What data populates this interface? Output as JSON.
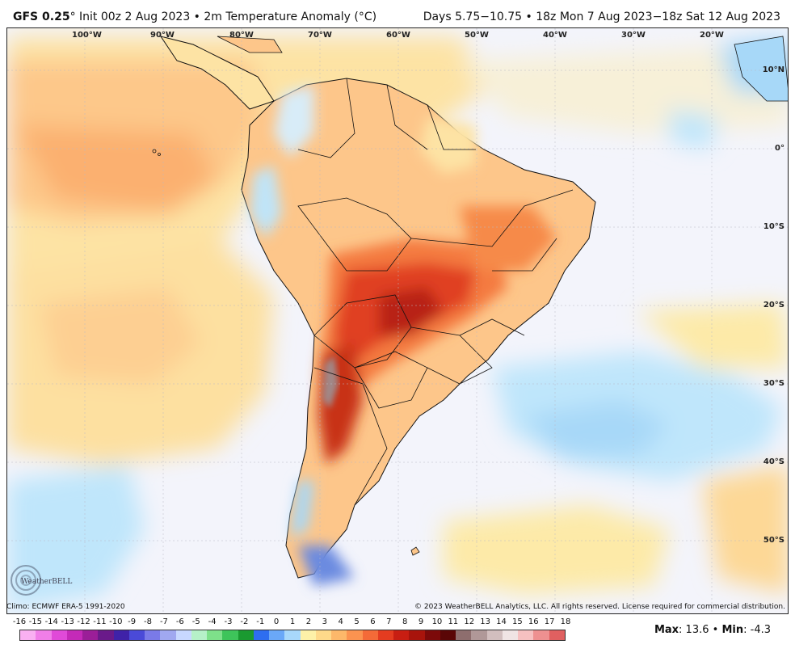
{
  "header": {
    "model": "GFS 0.25",
    "degree": "°",
    "title_rest": " Init 00z 2 Aug 2023 • 2m Temperature Anomaly (°C)",
    "right": "Days 5.75−10.75 • 18z Mon 7 Aug 2023−18z Sat 12 Aug 2023"
  },
  "map": {
    "lon_labels": [
      "100°W",
      "90°W",
      "80°W",
      "70°W",
      "60°W",
      "50°W",
      "40°W",
      "30°W",
      "20°W"
    ],
    "lat_labels": [
      "10°N",
      "0°",
      "10°S",
      "20°S",
      "30°S",
      "40°S",
      "50°S"
    ]
  },
  "footer": {
    "climo": "Climo: ECMWF ERA-5 1991-2020",
    "copyright": "© 2023 WeatherBELL Analytics, LLC. All rights reserved. License required for commercial distribution.",
    "logo_text": "WeatherBELL"
  },
  "legend": {
    "ticks": [
      "-16",
      "-15",
      "-14",
      "-13",
      "-12",
      "-11",
      "-10",
      "-9",
      "-8",
      "-7",
      "-6",
      "-5",
      "-4",
      "-3",
      "-2",
      "-1",
      "0",
      "1",
      "2",
      "3",
      "4",
      "5",
      "6",
      "7",
      "8",
      "9",
      "10",
      "11",
      "12",
      "13",
      "14",
      "15",
      "16",
      "17",
      "18"
    ],
    "colors": [
      "#f9b0f2",
      "#f07ee8",
      "#e04ad8",
      "#c42ab8",
      "#9b1e98",
      "#6a1a8a",
      "#3f22a8",
      "#4a4ad8",
      "#7a7ae8",
      "#a0a8f0",
      "#c8d8ff",
      "#b6f0c8",
      "#7ee08a",
      "#3ec45a",
      "#1a9a30",
      "#2e6ef0",
      "#6aa8f8",
      "#a8d8fb",
      "#fdf1a8",
      "#fed98a",
      "#fdb86a",
      "#fb9350",
      "#f46a38",
      "#e43c20",
      "#c81e12",
      "#a8140c",
      "#7c0a0a",
      "#5a0606",
      "#8e6e6e",
      "#b09898",
      "#d2bebe",
      "#f0e4e4",
      "#f6c0c0",
      "#ee9090",
      "#e06060"
    ]
  },
  "stats": {
    "max_label": "Max",
    "max_value": ": 13.6",
    "sep": " • ",
    "min_label": "Min",
    "min_value": ": -4.3"
  }
}
